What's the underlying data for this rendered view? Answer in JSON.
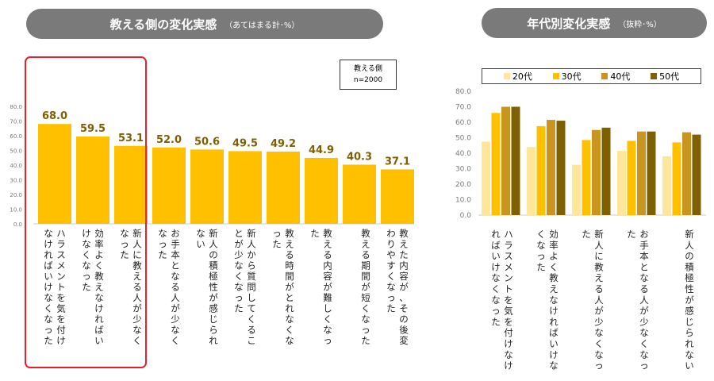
{
  "left_header": {
    "title": "教える側の変化実感",
    "subtitle": "（あてはまる計･%）"
  },
  "right_header": {
    "title": "年代別変化実感",
    "subtitle": "（抜粋･%）"
  },
  "sample_box": {
    "line1": "教える側",
    "line2": "n=2000"
  },
  "colors": {
    "bar": "#FFC000",
    "age20": "#FFE699",
    "age30": "#FFC000",
    "age40": "#C9951F",
    "age50": "#7F6000",
    "highlight": "#E8202A",
    "axis": "#7a7a7a"
  },
  "chart_data": [
    {
      "type": "bar",
      "title": "教える側の変化実感",
      "ylim": [
        0,
        80
      ],
      "yticks": [
        "0.0",
        "10.0",
        "20.0",
        "30.0",
        "40.0",
        "50.0",
        "60.0",
        "70.0",
        "80.0"
      ],
      "categories": [
        "ハラスメントを気を付けなければいけなくなった",
        "効率よく教えなければいけなくなった",
        "新人に教える人が少なくなった",
        "お手本となる人が少なくなった",
        "新人の積極性が感じられない",
        "新人から質問してくることが少なくなった",
        "教える時間がとれなくなった",
        "教える内容が難しくなった",
        "教える期間が短くなった",
        "教えた内容が、その後変わりやすくなった"
      ],
      "values": [
        68.0,
        59.5,
        53.1,
        52.0,
        50.6,
        49.5,
        49.2,
        44.9,
        40.3,
        37.1
      ],
      "data_labels": [
        "68.0",
        "59.5",
        "53.1",
        "52.0",
        "50.6",
        "49.5",
        "49.2",
        "44.9",
        "40.3",
        "37.1"
      ],
      "highlighted_count": 3
    },
    {
      "type": "bar",
      "title": "年代別変化実感",
      "ylim": [
        0,
        80
      ],
      "yticks": [
        "0.0",
        "10.0",
        "20.0",
        "30.0",
        "40.0",
        "50.0",
        "60.0",
        "70.0",
        "80.0"
      ],
      "categories": [
        "ハラスメントを気を付けなければいけなくなった",
        "効率よく教えなければいけなくなった",
        "新人に教える人が少なくなった",
        "お手本となる人が少なくなった",
        "新人の積極性が感じられない"
      ],
      "series": [
        {
          "name": "20代",
          "values": [
            47.5,
            44.0,
            32.5,
            41.5,
            38.0
          ]
        },
        {
          "name": "30代",
          "values": [
            66.0,
            57.5,
            48.5,
            48.0,
            47.0
          ]
        },
        {
          "name": "40代",
          "values": [
            70.0,
            61.5,
            55.0,
            54.0,
            53.5
          ]
        },
        {
          "name": "50代",
          "values": [
            70.0,
            61.0,
            56.5,
            54.0,
            52.0
          ]
        }
      ]
    }
  ]
}
